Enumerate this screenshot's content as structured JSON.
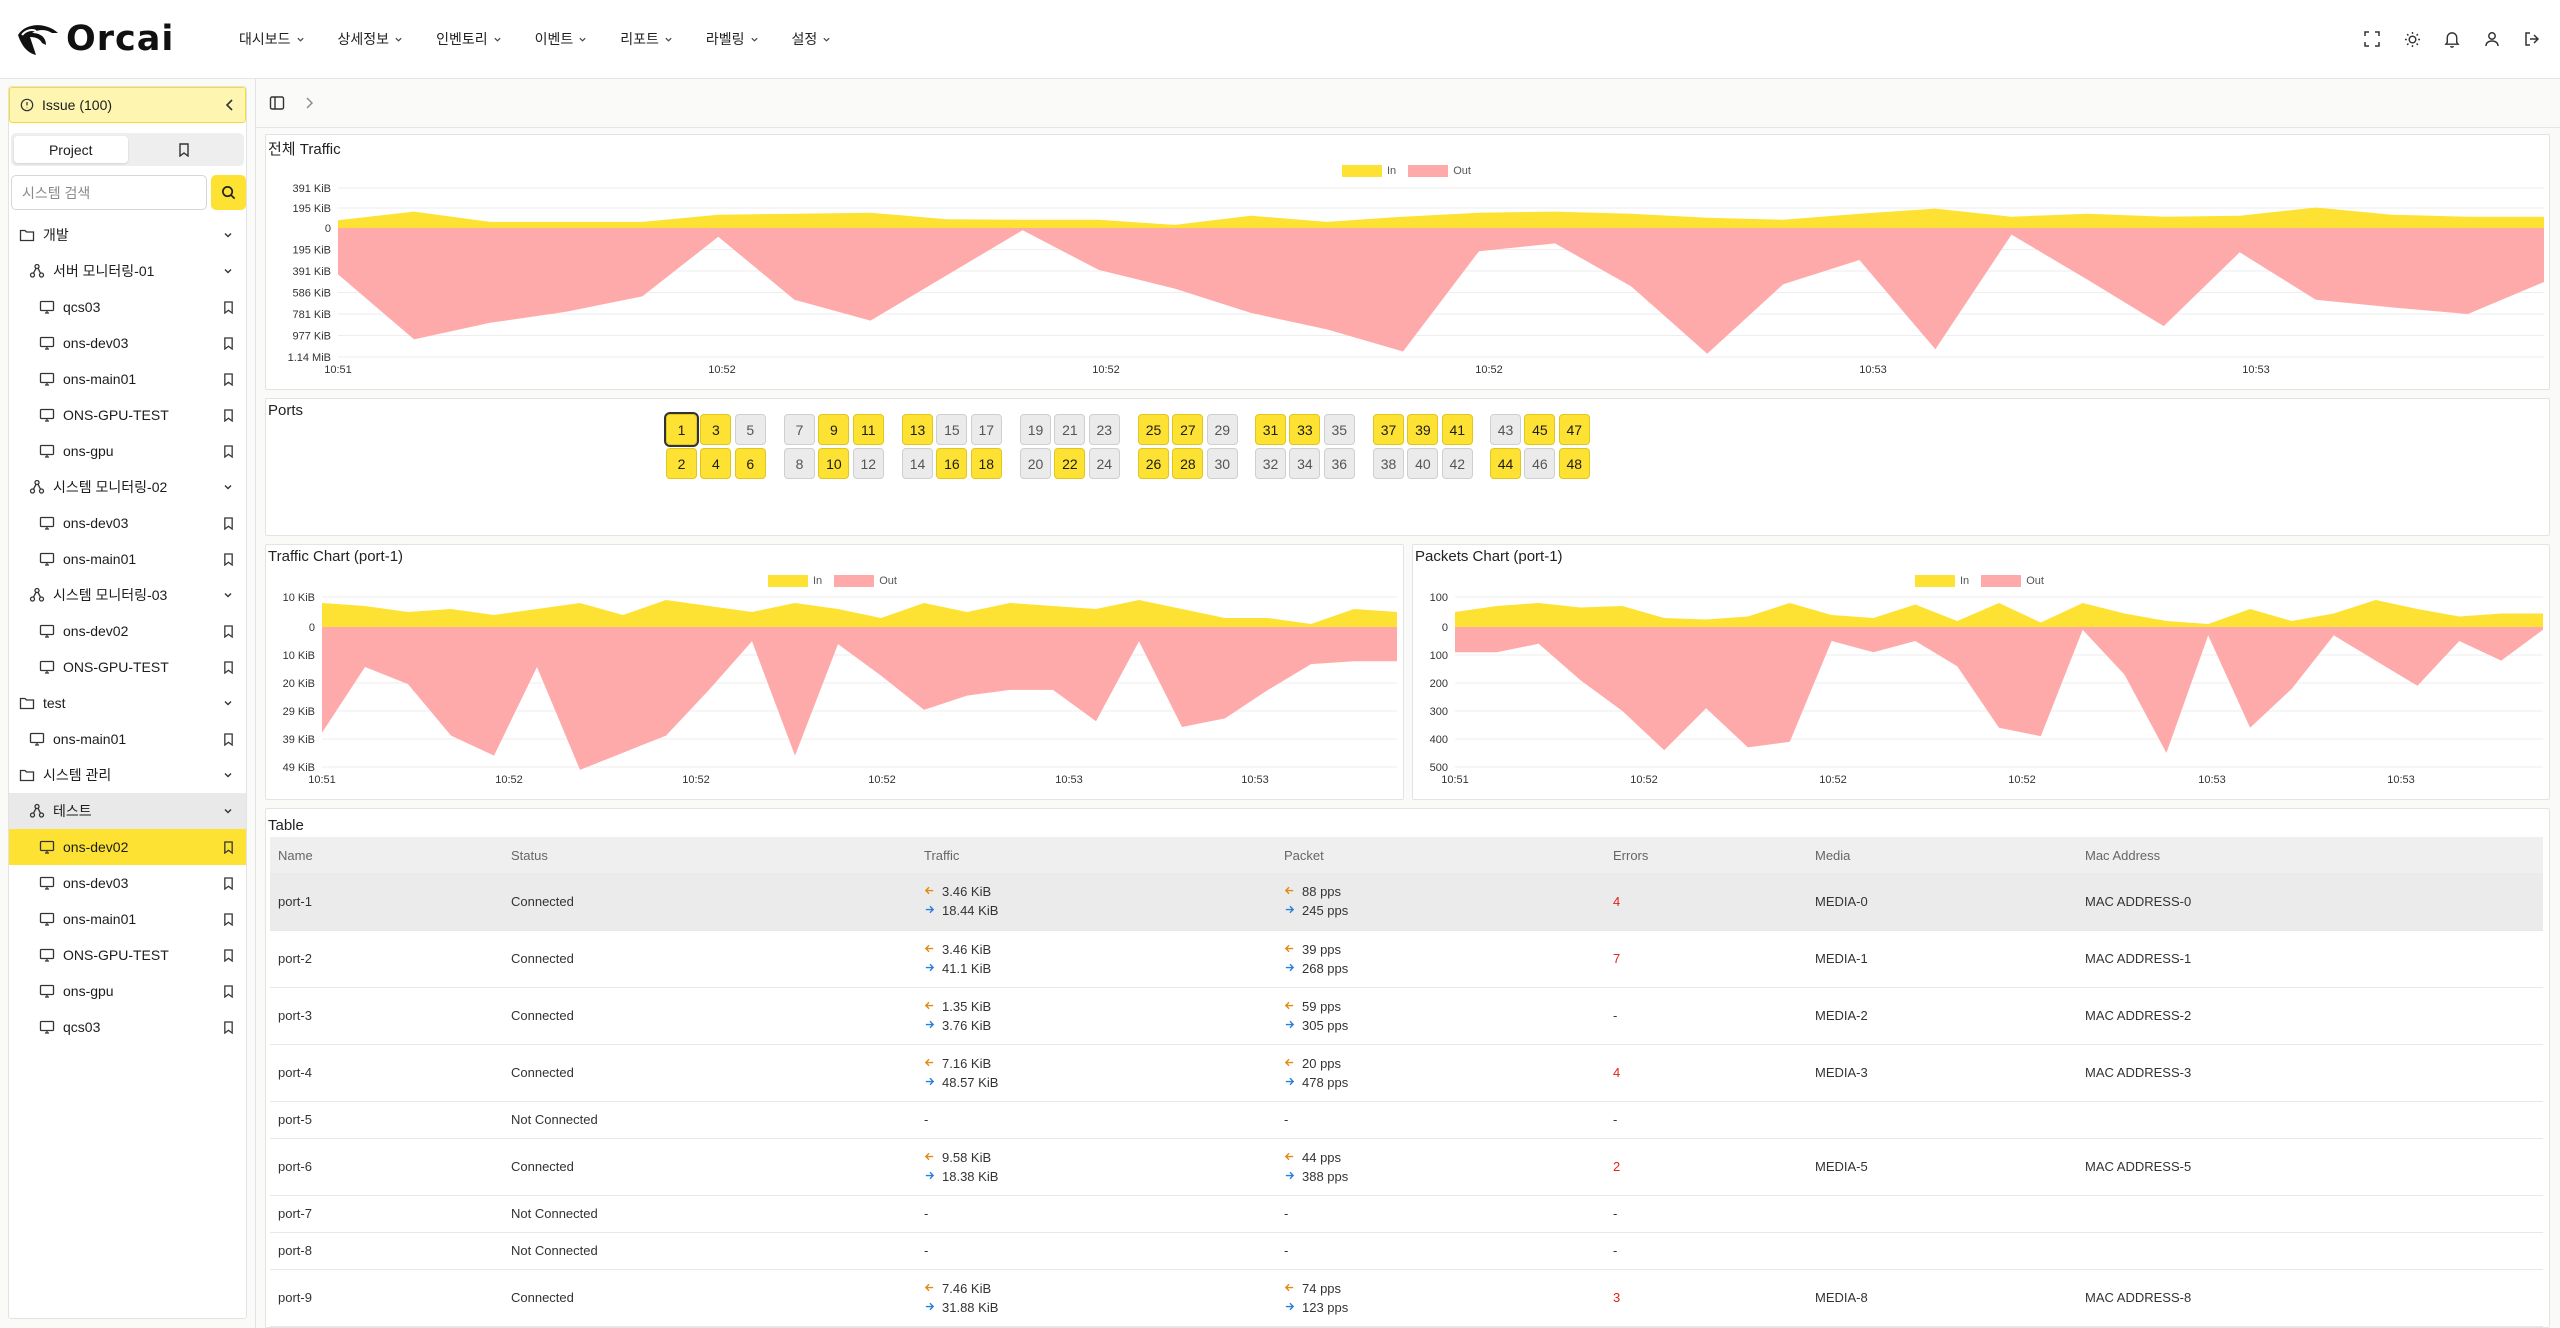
{
  "brand": {
    "name": "Orcai"
  },
  "nav": [
    {
      "label": "대시보드"
    },
    {
      "label": "상세정보"
    },
    {
      "label": "인벤토리"
    },
    {
      "label": "이벤트"
    },
    {
      "label": "리포트"
    },
    {
      "label": "라벨링"
    },
    {
      "label": "설정"
    }
  ],
  "top_icons": [
    "fullscreen-icon",
    "sun-icon",
    "bell-icon",
    "user-icon",
    "logout-icon"
  ],
  "sidebar": {
    "issue_label": "Issue (100)",
    "tabs": [
      {
        "label": "Project"
      },
      {
        "label": ""
      }
    ],
    "search_placeholder": "시스템 검색",
    "tree": [
      {
        "label": "개발",
        "kind": "folder",
        "level": 0,
        "chevron": true
      },
      {
        "label": "서버 모니터링-01",
        "kind": "group",
        "level": 1,
        "chevron": true
      },
      {
        "label": "qcs03",
        "kind": "system",
        "level": 2,
        "bookmark": true
      },
      {
        "label": "ons-dev03",
        "kind": "system",
        "level": 2,
        "bookmark": true
      },
      {
        "label": "ons-main01",
        "kind": "system",
        "level": 2,
        "bookmark": true
      },
      {
        "label": "ONS-GPU-TEST",
        "kind": "system",
        "level": 2,
        "bookmark": true
      },
      {
        "label": "ons-gpu",
        "kind": "system",
        "level": 2,
        "bookmark": true
      },
      {
        "label": "시스템 모니터링-02",
        "kind": "group",
        "level": 1,
        "chevron": true
      },
      {
        "label": "ons-dev03",
        "kind": "system",
        "level": 2,
        "bookmark": true
      },
      {
        "label": "ons-main01",
        "kind": "system",
        "level": 2,
        "bookmark": true
      },
      {
        "label": "시스템 모니터링-03",
        "kind": "group",
        "level": 1,
        "chevron": true
      },
      {
        "label": "ons-dev02",
        "kind": "system",
        "level": 2,
        "bookmark": true
      },
      {
        "label": "ONS-GPU-TEST",
        "kind": "system",
        "level": 2,
        "bookmark": true
      },
      {
        "label": "test",
        "kind": "folder",
        "level": 0,
        "chevron": true
      },
      {
        "label": "ons-main01",
        "kind": "system",
        "level": 1,
        "bookmark": true
      },
      {
        "label": "시스템 관리",
        "kind": "folder",
        "level": 0,
        "chevron": true
      },
      {
        "label": "테스트",
        "kind": "group",
        "level": 1,
        "chevron": true,
        "highlight": true
      },
      {
        "label": "ons-dev02",
        "kind": "system",
        "level": 2,
        "bookmark": true,
        "selected": true
      },
      {
        "label": "ons-dev03",
        "kind": "system",
        "level": 2,
        "bookmark": true
      },
      {
        "label": "ons-main01",
        "kind": "system",
        "level": 2,
        "bookmark": true
      },
      {
        "label": "ONS-GPU-TEST",
        "kind": "system",
        "level": 2,
        "bookmark": true
      },
      {
        "label": "ons-gpu",
        "kind": "system",
        "level": 2,
        "bookmark": true
      },
      {
        "label": "qcs03",
        "kind": "system",
        "level": 2,
        "bookmark": true
      }
    ]
  },
  "colors": {
    "accent": "#fde233",
    "in": "#fde233",
    "out": "#ffaaaa"
  },
  "legend": {
    "in": "In",
    "out": "Out"
  },
  "ports_panel": {
    "title": "Ports",
    "selected": 1,
    "active": [
      1,
      2,
      3,
      4,
      6,
      9,
      10,
      11,
      13,
      16,
      18,
      22,
      25,
      26,
      27,
      28,
      31,
      33,
      37,
      39,
      41,
      44,
      45,
      47,
      48
    ]
  },
  "table": {
    "title": "Table",
    "columns": [
      "Name",
      "Status",
      "Traffic",
      "Packet",
      "Errors",
      "Media",
      "Mac Address"
    ],
    "rows": [
      {
        "name": "port-1",
        "status": "Connected",
        "traffic_in": "3.46 KiB",
        "traffic_out": "18.44 KiB",
        "packet_in": "88 pps",
        "packet_out": "245 pps",
        "errors": "4",
        "media": "MEDIA-0",
        "mac": "MAC ADDRESS-0",
        "highlight": true
      },
      {
        "name": "port-2",
        "status": "Connected",
        "traffic_in": "3.46 KiB",
        "traffic_out": "41.1 KiB",
        "packet_in": "39 pps",
        "packet_out": "268 pps",
        "errors": "7",
        "media": "MEDIA-1",
        "mac": "MAC ADDRESS-1"
      },
      {
        "name": "port-3",
        "status": "Connected",
        "traffic_in": "1.35 KiB",
        "traffic_out": "3.76 KiB",
        "packet_in": "59 pps",
        "packet_out": "305 pps",
        "errors": "-",
        "media": "MEDIA-2",
        "mac": "MAC ADDRESS-2"
      },
      {
        "name": "port-4",
        "status": "Connected",
        "traffic_in": "7.16 KiB",
        "traffic_out": "48.57 KiB",
        "packet_in": "20 pps",
        "packet_out": "478 pps",
        "errors": "4",
        "media": "MEDIA-3",
        "mac": "MAC ADDRESS-3"
      },
      {
        "name": "port-5",
        "status": "Not Connected",
        "traffic_single": "-",
        "packet_single": "-",
        "errors": "-",
        "media": "",
        "mac": ""
      },
      {
        "name": "port-6",
        "status": "Connected",
        "traffic_in": "9.58 KiB",
        "traffic_out": "18.38 KiB",
        "packet_in": "44 pps",
        "packet_out": "388 pps",
        "errors": "2",
        "media": "MEDIA-5",
        "mac": "MAC ADDRESS-5"
      },
      {
        "name": "port-7",
        "status": "Not Connected",
        "traffic_single": "-",
        "packet_single": "-",
        "errors": "-",
        "media": "",
        "mac": ""
      },
      {
        "name": "port-8",
        "status": "Not Connected",
        "traffic_single": "-",
        "packet_single": "-",
        "errors": "-",
        "media": "",
        "mac": ""
      },
      {
        "name": "port-9",
        "status": "Connected",
        "traffic_in": "7.46 KiB",
        "traffic_out": "31.88 KiB",
        "packet_in": "74 pps",
        "packet_out": "123 pps",
        "errors": "3",
        "media": "MEDIA-8",
        "mac": "MAC ADDRESS-8"
      }
    ]
  },
  "chart_data": [
    {
      "type": "area",
      "title": "전체 Traffic",
      "y_tick_labels_top": [
        "391 KiB",
        "195 KiB",
        "0"
      ],
      "y_tick_labels_bottom": [
        "195 KiB",
        "391 KiB",
        "586 KiB",
        "781 KiB",
        "977 KiB",
        "1.14 MiB"
      ],
      "ylim_in": [
        0,
        391
      ],
      "ylim_out": [
        0,
        1170
      ],
      "y_unit": "KiB",
      "x_tick_labels": [
        "10:51",
        "10:52",
        "10:52",
        "10:52",
        "10:53",
        "10:53"
      ],
      "series": [
        {
          "name": "In",
          "values": [
            75,
            160,
            60,
            60,
            60,
            130,
            140,
            150,
            85,
            80,
            80,
            30,
            120,
            60,
            110,
            150,
            160,
            140,
            100,
            80,
            140,
            190,
            110,
            140,
            110,
            120,
            200,
            130,
            110,
            110
          ]
        },
        {
          "name": "Out",
          "values": [
            420,
            1010,
            860,
            760,
            620,
            80,
            650,
            840,
            430,
            20,
            380,
            550,
            770,
            920,
            1120,
            210,
            140,
            530,
            1140,
            510,
            290,
            1100,
            60,
            470,
            890,
            220,
            650,
            720,
            780,
            490
          ]
        }
      ]
    },
    {
      "type": "area",
      "title": "Traffic Chart (port-1)",
      "y_tick_labels_top": [
        "10 KiB",
        "0"
      ],
      "y_tick_labels_bottom": [
        "10 KiB",
        "20 KiB",
        "29 KiB",
        "39 KiB",
        "49 KiB"
      ],
      "ylim_in": [
        0,
        10
      ],
      "ylim_out": [
        0,
        49
      ],
      "y_unit": "KiB",
      "x_tick_labels": [
        "10:51",
        "10:52",
        "10:52",
        "10:52",
        "10:53",
        "10:53"
      ],
      "series": [
        {
          "name": "In",
          "values": [
            8,
            7,
            5,
            6,
            4,
            6,
            8,
            4,
            9,
            7,
            5,
            8,
            6,
            3,
            8,
            5,
            8,
            7,
            6,
            9,
            6,
            3,
            3,
            1,
            6,
            5
          ]
        },
        {
          "name": "Out",
          "values": [
            37,
            14,
            20,
            38,
            45,
            14,
            50,
            44,
            38,
            22,
            5,
            45,
            6,
            17,
            29,
            24,
            22,
            22,
            33,
            5,
            35,
            32,
            22,
            13,
            12,
            12
          ]
        }
      ]
    },
    {
      "type": "area",
      "title": "Packets Chart (port-1)",
      "y_tick_labels_top": [
        "100",
        "0"
      ],
      "y_tick_labels_bottom": [
        "100",
        "200",
        "300",
        "400",
        "500"
      ],
      "ylim_in": [
        0,
        100
      ],
      "ylim_out": [
        0,
        500
      ],
      "y_unit": "pps",
      "x_tick_labels": [
        "10:51",
        "10:52",
        "10:52",
        "10:52",
        "10:53",
        "10:53"
      ],
      "series": [
        {
          "name": "In",
          "values": [
            50,
            70,
            80,
            65,
            70,
            30,
            25,
            35,
            80,
            40,
            30,
            75,
            20,
            80,
            15,
            80,
            45,
            20,
            10,
            60,
            20,
            45,
            90,
            60,
            35,
            45,
            45
          ]
        },
        {
          "name": "Out",
          "values": [
            90,
            90,
            60,
            190,
            300,
            440,
            290,
            430,
            410,
            50,
            90,
            50,
            140,
            360,
            390,
            10,
            170,
            450,
            30,
            360,
            220,
            30,
            120,
            210,
            50,
            120,
            10
          ]
        }
      ]
    }
  ]
}
